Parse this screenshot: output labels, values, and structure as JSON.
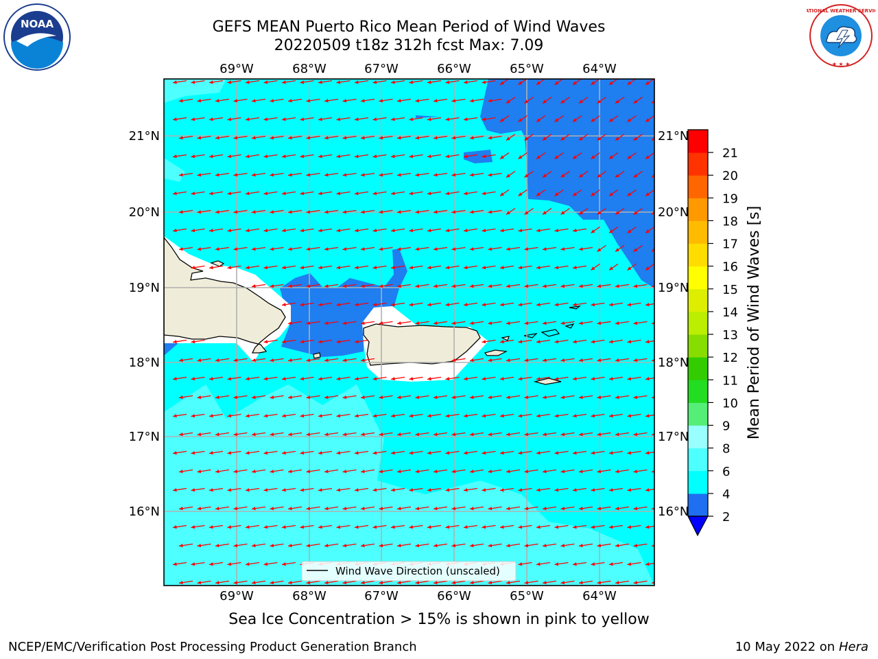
{
  "header": {
    "title_line1": "GEFS MEAN Puerto Rico Mean Period of Wind Waves",
    "title_line2": "20220509 t18z 312h fcst   Max: 7.09"
  },
  "logos": {
    "left": {
      "icon": "noaa-logo",
      "text": "NOAA"
    },
    "right": {
      "icon": "nws-logo",
      "text": "NATIONAL WEATHER SERVICE"
    }
  },
  "map": {
    "lon_labels": [
      "69°W",
      "68°W",
      "67°W",
      "66°W",
      "65°W",
      "64°W"
    ],
    "lat_labels": [
      "21°N",
      "20°N",
      "19°N",
      "18°N",
      "17°N",
      "16°N"
    ],
    "lon_range": [
      -70.0,
      -63.25
    ],
    "lat_range": [
      15.0,
      21.75
    ],
    "legend_label": "Wind Wave Direction (unscaled)",
    "arrow_color": "#ff0000",
    "land_color": "#efedd9",
    "ocean_colors": {
      "4-6": "#00ffff",
      "6-8": "#4dffff",
      "2-4": "#1f7ef0"
    }
  },
  "colorbar": {
    "label": "Mean Period of Wind Waves [s]",
    "ticks": [
      "2",
      "4",
      "6",
      "8",
      "9",
      "10",
      "11",
      "12",
      "13",
      "14",
      "15",
      "16",
      "17",
      "18",
      "19",
      "20",
      "21"
    ],
    "colors": [
      "#1f6ff0",
      "#00ffff",
      "#4dffff",
      "#99ffff",
      "#55ee77",
      "#22dd22",
      "#33cc00",
      "#88dd00",
      "#bbee00",
      "#ddee00",
      "#ffff00",
      "#ffdd00",
      "#ffbb00",
      "#ff9900",
      "#ff6600",
      "#ff3300",
      "#ff0000"
    ],
    "underflow_color": "#0000ff"
  },
  "notes": {
    "ice": "Sea Ice Concentration > 15% is shown in pink to yellow",
    "footer_left": "NCEP/EMC/Verification Post Processing Product Generation Branch",
    "footer_date": "10 May 2022 on",
    "footer_machine": "Hera"
  }
}
